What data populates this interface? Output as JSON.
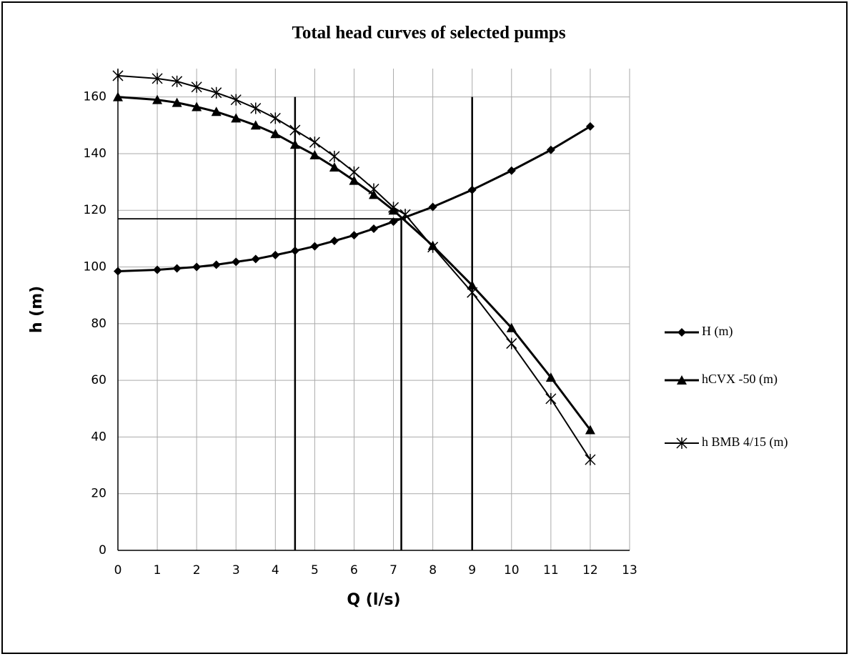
{
  "chart_data": {
    "type": "line",
    "title": "Total head curves of selected pumps",
    "x_label": "Q (l/s)",
    "y_label": "h (m)",
    "xlim": [
      0,
      13
    ],
    "xticks": [
      0,
      1,
      2,
      3,
      4,
      5,
      6,
      7,
      8,
      9,
      10,
      11,
      12,
      13
    ],
    "ylim": [
      0,
      170
    ],
    "yticks": [
      0,
      20,
      40,
      60,
      80,
      100,
      120,
      140,
      160
    ],
    "grid": true,
    "legend": "right",
    "series": [
      {
        "name": "H (m)",
        "color": "#000000",
        "marker": "diamond",
        "x": [
          0,
          1,
          1.5,
          2,
          2.5,
          3,
          3.5,
          4,
          4.5,
          5,
          5.5,
          6,
          6.5,
          7,
          8,
          9,
          10,
          11,
          12
        ],
        "values": [
          98.5,
          99,
          99.5,
          100,
          100.8,
          101.8,
          102.8,
          104.2,
          105.7,
          107.3,
          109.2,
          111.2,
          113.5,
          116,
          121.2,
          127.2,
          134,
          141.3,
          149.6
        ]
      },
      {
        "name": "hCVX -50 (m)",
        "color": "#000000",
        "marker": "triangle",
        "x": [
          0,
          1,
          1.5,
          2,
          2.5,
          3,
          3.5,
          4,
          4.5,
          5,
          5.5,
          6,
          6.5,
          7,
          8,
          9,
          10,
          11,
          12
        ],
        "values": [
          160,
          159,
          158,
          156.5,
          154.8,
          152.5,
          150,
          147,
          143.2,
          139.5,
          135.2,
          130.5,
          125.5,
          120,
          107.5,
          93.5,
          78.5,
          61,
          42.5
        ]
      },
      {
        "name": "h  BMB 4/15 (m)",
        "color": "#000000",
        "marker": "star",
        "x": [
          0,
          1,
          1.5,
          2,
          2.5,
          3,
          3.5,
          4,
          4.5,
          5,
          5.5,
          6,
          6.5,
          7,
          7.3,
          8,
          9,
          10,
          11,
          12
        ],
        "values": [
          167.5,
          166.5,
          165.5,
          163.5,
          161.5,
          159,
          156,
          152.5,
          148.3,
          144,
          139,
          133.5,
          127.5,
          121,
          118.5,
          107,
          91,
          73,
          53.5,
          32
        ]
      }
    ],
    "reference_lines": [
      {
        "x": [
          4.5,
          4.5
        ],
        "values": [
          0,
          160
        ]
      },
      {
        "x": [
          7.2,
          7.2
        ],
        "values": [
          0,
          117
        ]
      },
      {
        "x": [
          9,
          9
        ],
        "values": [
          0,
          160
        ]
      },
      {
        "x": [
          0,
          7.2
        ],
        "values": [
          117,
          117
        ]
      }
    ]
  }
}
